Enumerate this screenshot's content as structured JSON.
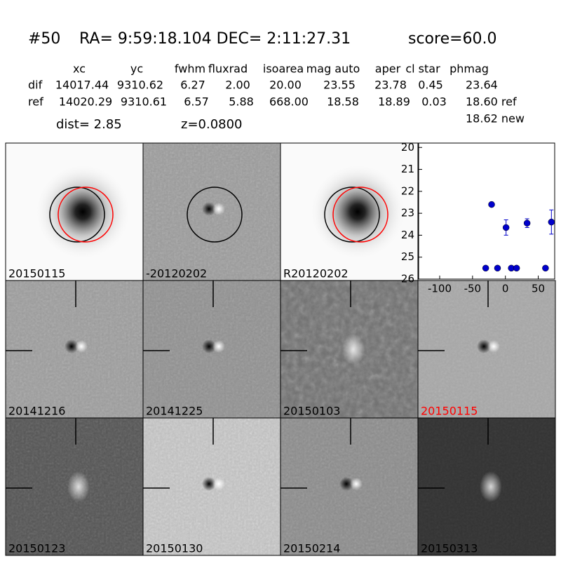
{
  "header": {
    "title": [
      "#50",
      "RA= 9:59:18.104 DEC= 2:11:27.31",
      "score=60.0"
    ],
    "table": {
      "columns": [
        "xc",
        "yc",
        "fwhm",
        "fluxrad",
        "isoarea",
        "mag auto",
        "aper",
        "cl star",
        "phmag"
      ],
      "rows": [
        [
          "dif",
          "14017.44",
          "9310.62",
          "6.27",
          "2.00",
          "20.00",
          "23.55",
          "23.78",
          "0.45",
          "23.64"
        ],
        [
          "ref",
          "14020.29",
          "9310.61",
          "6.57",
          "5.88",
          "668.00",
          "18.58",
          "18.89",
          "0.03",
          "18.60 ref"
        ]
      ],
      "extra": "18.62 new"
    },
    "dist": "dist=  2.85",
    "redshift": "z=0.0800"
  },
  "panels": [
    {
      "label": "20150115"
    },
    {
      "label": "-20120202"
    },
    {
      "label": "R20120202"
    },
    {
      "label": "20141216"
    },
    {
      "label": "20141225"
    },
    {
      "label": "20150103"
    },
    {
      "label": "20150115",
      "label_color": "red"
    },
    {
      "label": "20150123"
    },
    {
      "label": "20150130"
    },
    {
      "label": "20150214"
    },
    {
      "label": "20150313"
    }
  ],
  "lightcurve": {
    "type": "scatter",
    "color": "#0000cc",
    "x": [
      -30,
      -21,
      -12,
      1,
      9,
      17,
      33,
      61,
      70
    ],
    "values": [
      25.5,
      22.6,
      25.5,
      23.65,
      25.5,
      25.5,
      23.45,
      25.5,
      23.4
    ],
    "errors": [
      null,
      0.05,
      null,
      0.35,
      null,
      null,
      0.2,
      null,
      0.55
    ],
    "xlim": [
      -132,
      75
    ],
    "ylim": [
      19.8,
      26
    ],
    "invert_y": true,
    "xticks": [
      -100,
      -50,
      0,
      50
    ],
    "yticks": [
      20,
      21,
      22,
      23,
      24,
      25,
      26
    ]
  }
}
